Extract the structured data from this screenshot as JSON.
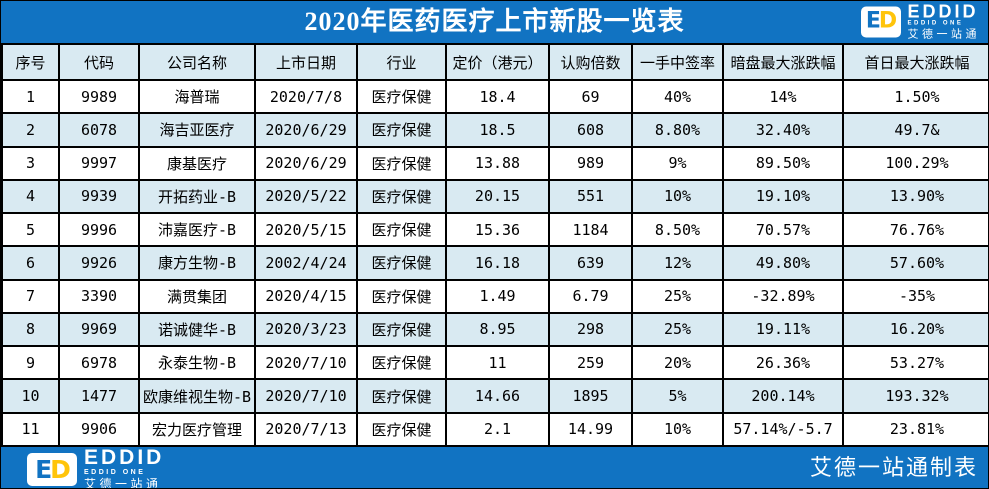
{
  "logo": {
    "icon_e": "E",
    "icon_d": "D",
    "name": "EDDID",
    "sub": "EDDID ONE",
    "cn": "艾德一站通"
  },
  "footer": {
    "credit": "艾德一站通制表"
  },
  "colors": {
    "header_blue": "#1173c2",
    "row_alt_blue": "#d9eaf2",
    "logo_yellow": "#ffc40a",
    "border_black": "#000000"
  },
  "chart_data": {
    "type": "table",
    "title": "2020年医药医疗上市新股一览表",
    "columns": [
      "序号",
      "代码",
      "公司名称",
      "上市日期",
      "行业",
      "定价（港元）",
      "认购倍数",
      "一手中签率",
      "暗盘最大涨跌幅",
      "首日最大涨跌幅"
    ],
    "rows": [
      [
        "1",
        "9989",
        "海普瑞",
        "2020/7/8",
        "医疗保健",
        "18.4",
        "69",
        "40%",
        "14%",
        "1.50%"
      ],
      [
        "2",
        "6078",
        "海吉亚医疗",
        "2020/6/29",
        "医疗保健",
        "18.5",
        "608",
        "8.80%",
        "32.40%",
        "49.7&"
      ],
      [
        "3",
        "9997",
        "康基医疗",
        "2020/6/29",
        "医疗保健",
        "13.88",
        "989",
        "9%",
        "89.50%",
        "100.29%"
      ],
      [
        "4",
        "9939",
        "开拓药业-B",
        "2020/5/22",
        "医疗保健",
        "20.15",
        "551",
        "10%",
        "19.10%",
        "13.90%"
      ],
      [
        "5",
        "9996",
        "沛嘉医疗-B",
        "2020/5/15",
        "医疗保健",
        "15.36",
        "1184",
        "8.50%",
        "70.57%",
        "76.76%"
      ],
      [
        "6",
        "9926",
        "康方生物-B",
        "2002/4/24",
        "医疗保健",
        "16.18",
        "639",
        "12%",
        "49.80%",
        "57.60%"
      ],
      [
        "7",
        "3390",
        "满贯集团",
        "2020/4/15",
        "医疗保健",
        "1.49",
        "6.79",
        "25%",
        "-32.89%",
        "-35%"
      ],
      [
        "8",
        "9969",
        "诺诚健华-B",
        "2020/3/23",
        "医疗保健",
        "8.95",
        "298",
        "25%",
        "19.11%",
        "16.20%"
      ],
      [
        "9",
        "6978",
        "永泰生物-B",
        "2020/7/10",
        "医疗保健",
        "11",
        "259",
        "20%",
        "26.36%",
        "53.27%"
      ],
      [
        "10",
        "1477",
        "欧康维视生物-B",
        "2020/7/10",
        "医疗保健",
        "14.66",
        "1895",
        "5%",
        "200.14%",
        "193.32%"
      ],
      [
        "11",
        "9906",
        "宏力医疗管理",
        "2020/7/13",
        "医疗保健",
        "2.1",
        "14.99",
        "10%",
        "57.14%/-5.7",
        "23.81%"
      ]
    ]
  }
}
